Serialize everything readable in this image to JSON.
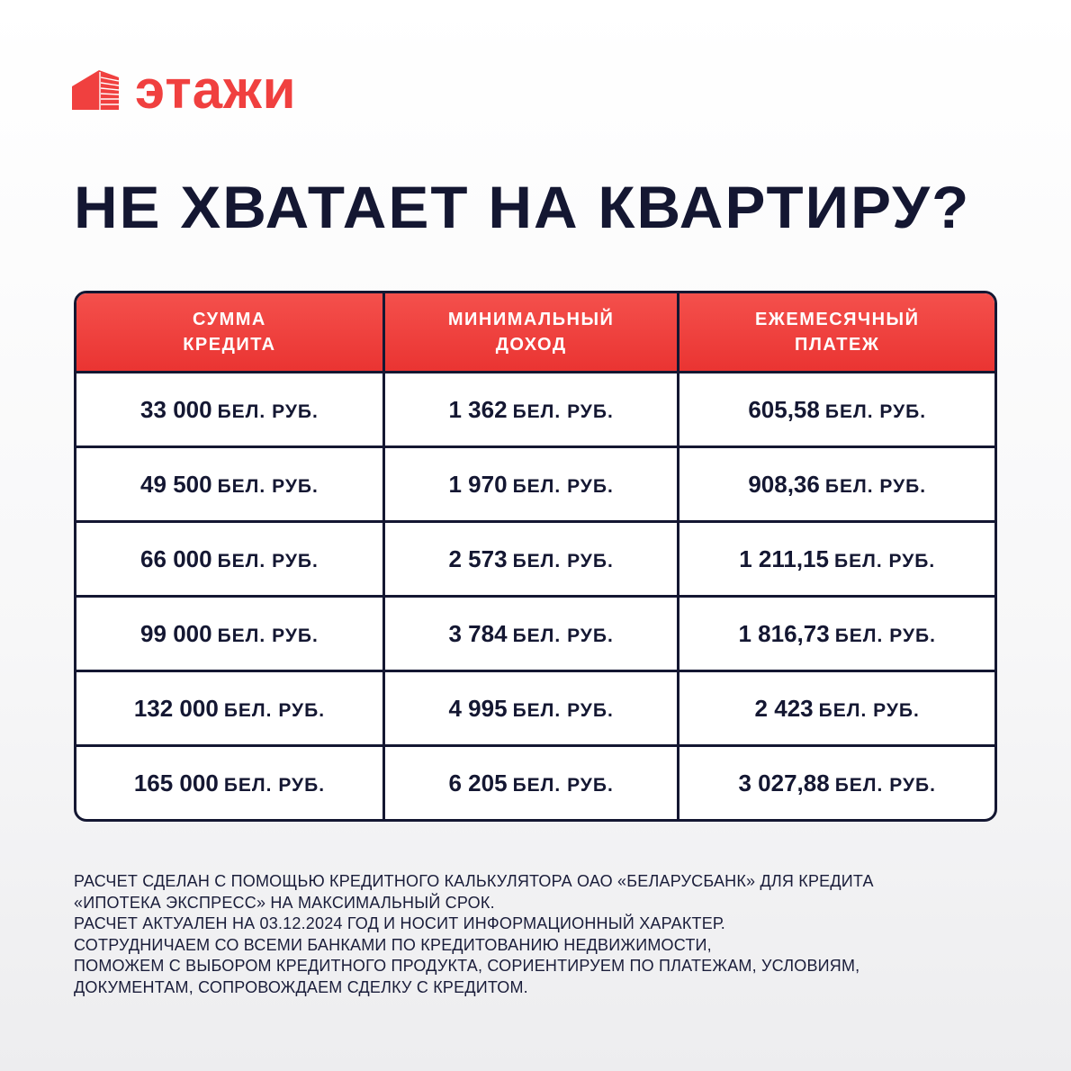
{
  "brand": {
    "name": "этажи",
    "color": "#f0403f",
    "icon": "building-icon"
  },
  "title": "НЕ ХВАТАЕТ НА КВАРТИРУ?",
  "table": {
    "headers": [
      [
        "СУММА",
        "КРЕДИТА"
      ],
      [
        "МИНИМАЛЬНЫЙ",
        "ДОХОД"
      ],
      [
        "ЕЖЕМЕСЯЧНЫЙ",
        "ПЛАТЕЖ"
      ]
    ],
    "unit": "БЕЛ. РУБ.",
    "rows": [
      [
        "33 000",
        "1 362",
        "605,58"
      ],
      [
        "49 500",
        "1 970",
        "908,36"
      ],
      [
        "66 000",
        "2 573",
        "1 211,15"
      ],
      [
        "99 000",
        "3 784",
        "1 816,73"
      ],
      [
        "132 000",
        "4 995",
        "2 423"
      ],
      [
        "165 000",
        "6 205",
        "3 027,88"
      ]
    ]
  },
  "footer": [
    "РАСЧЕТ СДЕЛАН С ПОМОЩЬЮ КРЕДИТНОГО КАЛЬКУЛЯТОРА ОАО «БЕЛАРУСБАНК» ДЛЯ КРЕДИТА",
    "«ИПОТЕКА ЭКСПРЕСС» НА МАКСИМАЛЬНЫЙ СРОК.",
    "РАСЧЕТ АКТУАЛЕН НА 03.12.2024 ГОД И НОСИТ ИНФОРМАЦИОННЫЙ ХАРАКТЕР.",
    "СОТРУДНИЧАЕМ СО ВСЕМИ БАНКАМИ ПО КРЕДИТОВАНИЮ НЕДВИЖИМОСТИ,",
    "ПОМОЖЕМ С ВЫБОРОМ КРЕДИТНОГО ПРОДУКТА, СОРИЕНТИРУЕМ ПО ПЛАТЕЖАМ, УСЛОВИЯМ,",
    "ДОКУМЕНТАМ, СОПРОВОЖДАЕМ СДЕЛКУ С КРЕДИТОМ."
  ]
}
